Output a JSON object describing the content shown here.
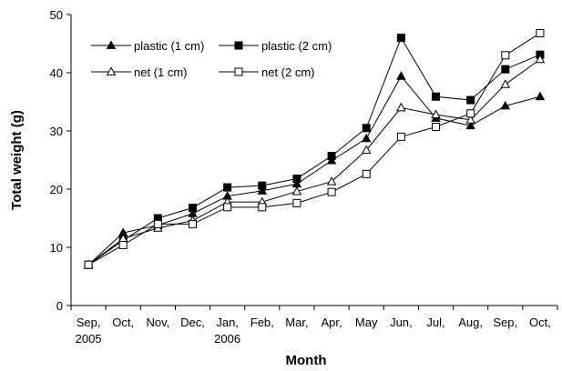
{
  "chart_data": {
    "type": "line",
    "xlabel": "Month",
    "ylabel": "Total weight (g)",
    "ylim": [
      0,
      50
    ],
    "yticks": [
      0,
      10,
      20,
      30,
      40,
      50
    ],
    "grid": false,
    "legend_position": "top-left",
    "categories": [
      "Sep, 2005",
      "Oct,",
      "Nov,",
      "Dec,",
      "Jan, 2006",
      "Feb,",
      "Mar,",
      "Apr,",
      "May",
      "Jun,",
      "Jul,",
      "Aug,",
      "Sep,",
      "Oct,"
    ],
    "category_lines": [
      [
        "Sep,",
        "2005"
      ],
      [
        "Oct,"
      ],
      [
        "Nov,"
      ],
      [
        "Dec,"
      ],
      [
        "Jan,",
        "2006"
      ],
      [
        "Feb,"
      ],
      [
        "Mar,"
      ],
      [
        "Apr,"
      ],
      [
        "May"
      ],
      [
        "Jun,"
      ],
      [
        "Jul,"
      ],
      [
        "Aug,"
      ],
      [
        "Sep,"
      ],
      [
        "Oct,"
      ]
    ],
    "series": [
      {
        "name": "plastic (1 cm)",
        "marker": "triangle",
        "filled": true,
        "values": [
          7.0,
          12.5,
          13.8,
          15.8,
          18.8,
          19.7,
          20.9,
          24.9,
          28.7,
          39.4,
          32.2,
          30.9,
          34.3,
          35.9
        ]
      },
      {
        "name": "plastic (2 cm)",
        "marker": "square",
        "filled": true,
        "values": [
          7.0,
          11.2,
          15.0,
          16.8,
          20.3,
          20.6,
          21.8,
          25.7,
          30.5,
          46.0,
          35.9,
          35.3,
          40.6,
          43.1
        ]
      },
      {
        "name": "net (1 cm)",
        "marker": "triangle",
        "filled": false,
        "values": [
          7.0,
          11.5,
          13.3,
          14.6,
          17.8,
          17.8,
          19.6,
          21.3,
          26.7,
          34.0,
          32.8,
          31.9,
          38.0,
          42.3
        ]
      },
      {
        "name": "net (2 cm)",
        "marker": "square",
        "filled": false,
        "values": [
          7.0,
          10.4,
          14.0,
          14.0,
          16.9,
          16.9,
          17.6,
          19.5,
          22.6,
          29.0,
          30.7,
          33.0,
          43.0,
          46.8
        ]
      }
    ]
  }
}
